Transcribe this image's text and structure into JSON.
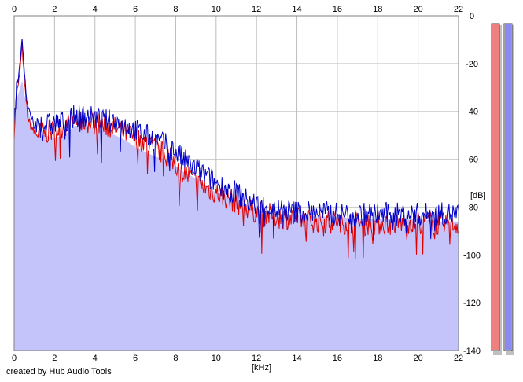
{
  "chart_data": {
    "type": "area",
    "title": "",
    "xlabel": "[kHz]",
    "ylabel": "[dB]",
    "xlim": [
      0,
      22
    ],
    "ylim": [
      -140,
      0
    ],
    "x_ticks": [
      "0",
      "2",
      "4",
      "6",
      "8",
      "10",
      "12",
      "14",
      "16",
      "18",
      "20",
      "22"
    ],
    "y_ticks": [
      "0",
      "-20",
      "-40",
      "-60",
      "-80",
      "-100",
      "-120",
      "-140"
    ],
    "grid": true,
    "series": [
      {
        "style": "filled-area",
        "color": "#c4c4fa",
        "x": [
          0,
          0.1,
          0.2,
          0.3,
          0.4,
          0.5,
          0.7,
          1,
          1.5,
          2,
          2.5,
          3,
          3.5,
          4,
          4.5,
          5,
          5.5,
          6,
          6.5,
          7,
          7.5,
          8,
          8.5,
          9,
          9.5,
          10,
          10.5,
          11,
          11.5,
          12,
          13,
          14,
          15,
          16,
          17,
          18,
          19,
          20,
          21,
          22
        ],
        "values": [
          -53,
          -36,
          -33,
          -30,
          -27,
          -33,
          -40,
          -49,
          -50,
          -51,
          -50,
          -46,
          -46,
          -47,
          -48,
          -50,
          -52,
          -55,
          -57,
          -59,
          -60,
          -63,
          -66,
          -68,
          -71,
          -74,
          -75,
          -77,
          -79,
          -81,
          -83,
          -83,
          -84,
          -84,
          -85,
          -85,
          -85,
          -85,
          -86,
          -86
        ]
      },
      {
        "style": "line",
        "color": "#e00000",
        "x": [
          0,
          0.1,
          0.2,
          0.3,
          0.4,
          0.5,
          0.7,
          1,
          1.5,
          2,
          2.5,
          3,
          3.5,
          4,
          4.5,
          5,
          5.5,
          6,
          6.5,
          7,
          7.5,
          8,
          8.5,
          9,
          9.5,
          10,
          10.5,
          11,
          11.5,
          12,
          13,
          14,
          15,
          16,
          17,
          18,
          19,
          20,
          21,
          22
        ],
        "values": [
          -50,
          -33,
          -30,
          -22,
          -12,
          -28,
          -44,
          -49,
          -49,
          -48,
          -46,
          -44,
          -44,
          -45,
          -46,
          -47,
          -49,
          -51,
          -53,
          -56,
          -58,
          -62,
          -66,
          -70,
          -72,
          -74,
          -76,
          -78,
          -80,
          -82,
          -84,
          -85,
          -86,
          -86,
          -87,
          -87,
          -87,
          -86,
          -87,
          -87
        ]
      },
      {
        "style": "line",
        "color": "#0000c8",
        "x": [
          0,
          0.1,
          0.2,
          0.3,
          0.4,
          0.5,
          0.7,
          1,
          1.5,
          2,
          2.5,
          3,
          3.5,
          4,
          4.5,
          5,
          5.5,
          6,
          6.5,
          7,
          7.5,
          8,
          8.5,
          9,
          9.5,
          10,
          10.5,
          11,
          11.5,
          12,
          13,
          14,
          15,
          16,
          17,
          18,
          19,
          20,
          21,
          22
        ],
        "values": [
          -45,
          -30,
          -26,
          -18,
          -8,
          -25,
          -40,
          -46,
          -46,
          -45,
          -44,
          -42,
          -42,
          -43,
          -44,
          -44,
          -46,
          -48,
          -50,
          -52,
          -54,
          -57,
          -61,
          -64,
          -67,
          -70,
          -72,
          -74,
          -77,
          -79,
          -81,
          -82,
          -82,
          -83,
          -83,
          -83,
          -83,
          -83,
          -83,
          -83
        ]
      }
    ],
    "level_meters": [
      {
        "color": "#f08080",
        "level": 1.0
      },
      {
        "color": "#8a8af2",
        "level": 1.0
      }
    ]
  },
  "footer": "created by Hub Audio Tools"
}
